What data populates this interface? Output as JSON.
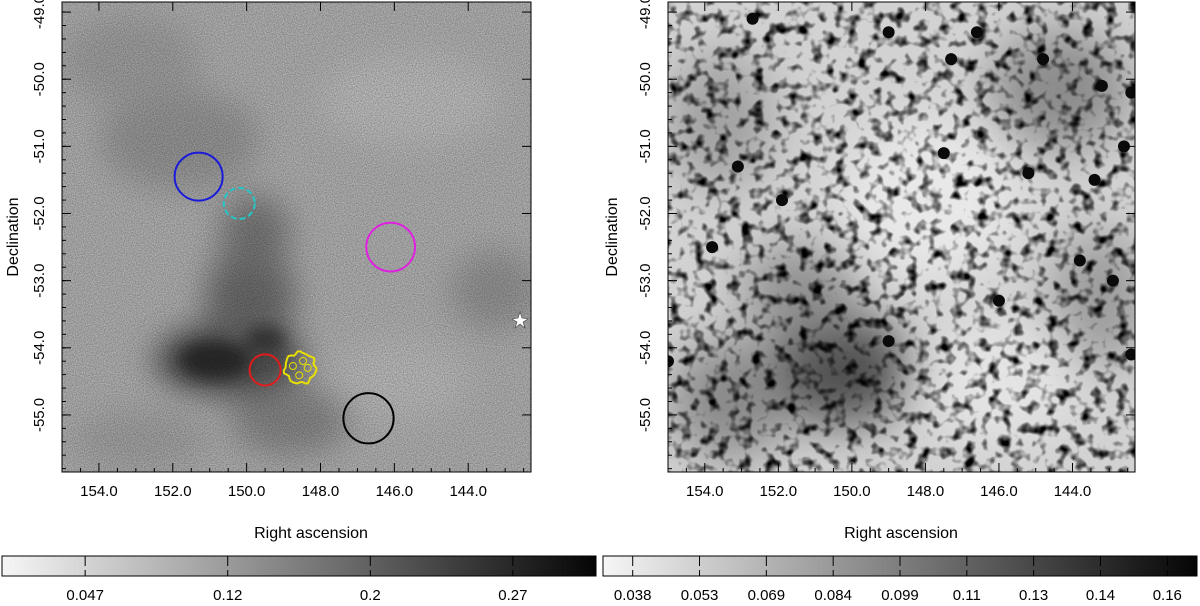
{
  "chart_data": [
    {
      "type": "heatmap",
      "colormap": "grayscale",
      "xlabel": "Right ascension",
      "ylabel": "Declination",
      "x_axis": {
        "reversed": true,
        "ticks": [
          154.0,
          152.0,
          150.0,
          148.0,
          146.0,
          144.0
        ],
        "tick_labels": [
          "154.0",
          "152.0",
          "150.0",
          "148.0",
          "146.0",
          "144.0"
        ]
      },
      "y_axis": {
        "ticks": [
          -49.0,
          -50.0,
          -51.0,
          -52.0,
          -53.0,
          -54.0,
          -55.0
        ],
        "tick_labels": [
          "-49.0",
          "-50.0",
          "-51.0",
          "-52.0",
          "-53.0",
          "-54.0",
          "-55.0"
        ]
      },
      "xlim": [
        155.0,
        142.3
      ],
      "ylim": [
        -55.85,
        -48.85
      ],
      "colorbar": {
        "ticks": [
          "0.047",
          "0.12",
          "0.2",
          "0.27"
        ],
        "range": [
          0.0,
          0.34
        ]
      },
      "regions": [
        {
          "color": "#1a1adb",
          "ra": 151.3,
          "dec": -51.45,
          "r_deg": 0.65,
          "style": "circle"
        },
        {
          "color": "#22c6c6",
          "ra": 150.2,
          "dec": -51.85,
          "r_deg": 0.42,
          "style": "circle"
        },
        {
          "color": "#e01c1c",
          "ra": 149.5,
          "dec": -54.33,
          "r_deg": 0.42,
          "style": "circle"
        },
        {
          "color": "#e8e000",
          "ra": 148.55,
          "dec": -54.3,
          "r_deg": 0.45,
          "style": "contour"
        },
        {
          "color": "#e020e0",
          "ra": 146.1,
          "dec": -52.5,
          "r_deg": 0.66,
          "style": "circle"
        },
        {
          "color": "#000000",
          "ra": 146.7,
          "dec": -55.05,
          "r_deg": 0.68,
          "style": "circle"
        }
      ]
    },
    {
      "type": "heatmap",
      "colormap": "grayscale",
      "xlabel": "Right ascension",
      "ylabel": "Declination",
      "x_axis": {
        "reversed": true,
        "ticks": [
          154.0,
          152.0,
          150.0,
          148.0,
          146.0,
          144.0
        ],
        "tick_labels": [
          "154.0",
          "152.0",
          "150.0",
          "148.0",
          "146.0",
          "144.0"
        ]
      },
      "y_axis": {
        "ticks": [
          -49.0,
          -50.0,
          -51.0,
          -52.0,
          -53.0,
          -54.0,
          -55.0
        ],
        "tick_labels": [
          "-49.0",
          "-50.0",
          "-51.0",
          "-52.0",
          "-53.0",
          "-54.0",
          "-55.0"
        ]
      },
      "xlim": [
        155.0,
        142.3
      ],
      "ylim": [
        -55.85,
        -48.85
      ],
      "colorbar": {
        "ticks": [
          "0.038",
          "0.053",
          "0.069",
          "0.084",
          "0.099",
          "0.11",
          "0.13",
          "0.14",
          "0.16"
        ],
        "range": [
          0.03,
          0.17
        ]
      },
      "point_sources": [
        [
          152.7,
          -49.1
        ],
        [
          149.0,
          -49.3
        ],
        [
          147.3,
          -49.7
        ],
        [
          146.6,
          -49.3
        ],
        [
          144.8,
          -49.7
        ],
        [
          143.2,
          -50.1
        ],
        [
          142.4,
          -50.2
        ],
        [
          153.1,
          -51.3
        ],
        [
          151.9,
          -51.8
        ],
        [
          142.6,
          -51.0
        ],
        [
          143.4,
          -51.5
        ],
        [
          153.8,
          -52.5
        ],
        [
          142.9,
          -53.0
        ],
        [
          149.0,
          -53.9
        ],
        [
          142.4,
          -54.1
        ],
        [
          155.0,
          -54.2
        ],
        [
          146.0,
          -53.3
        ],
        [
          147.5,
          -51.1
        ],
        [
          145.2,
          -51.4
        ],
        [
          143.8,
          -52.7
        ]
      ]
    }
  ]
}
